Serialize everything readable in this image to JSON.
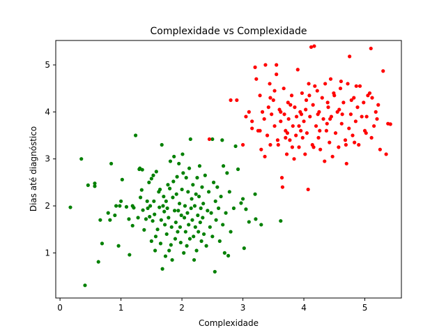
{
  "chart_data": {
    "type": "scatter",
    "title": "Complexidade vs Complexidade",
    "xlabel": "Complexidade",
    "ylabel": "Dias até diagnóstico",
    "xlim": [
      -0.07,
      5.6
    ],
    "ylim": [
      0.04,
      5.52
    ],
    "x_ticks": [
      "0",
      "1",
      "2",
      "3",
      "4",
      "5"
    ],
    "y_ticks": [
      "1",
      "2",
      "3",
      "4",
      "5"
    ],
    "grid": false,
    "legend": "none",
    "series": [
      {
        "color": "#008000",
        "points": [
          [
            0.17,
            1.97
          ],
          [
            0.35,
            3.0
          ],
          [
            0.41,
            0.31
          ],
          [
            0.46,
            2.44
          ],
          [
            0.57,
            2.48
          ],
          [
            0.57,
            2.42
          ],
          [
            0.63,
            0.81
          ],
          [
            0.66,
            1.7
          ],
          [
            0.69,
            1.2
          ],
          [
            0.79,
            1.85
          ],
          [
            0.82,
            1.7
          ],
          [
            0.84,
            2.9
          ],
          [
            0.9,
            1.8
          ],
          [
            0.92,
            2.0
          ],
          [
            0.96,
            1.15
          ],
          [
            0.98,
            2.0
          ],
          [
            1.0,
            2.1
          ],
          [
            1.02,
            2.56
          ],
          [
            1.09,
            1.98
          ],
          [
            1.13,
            1.72
          ],
          [
            1.14,
            0.96
          ],
          [
            1.19,
            2.0
          ],
          [
            1.19,
            1.58
          ],
          [
            1.21,
            1.96
          ],
          [
            1.24,
            3.5
          ],
          [
            1.28,
            1.75
          ],
          [
            1.3,
            2.78
          ],
          [
            1.31,
            2.8
          ],
          [
            1.32,
            2.18
          ],
          [
            1.34,
            2.34
          ],
          [
            1.35,
            2.77
          ],
          [
            1.36,
            1.91
          ],
          [
            1.38,
            1.49
          ],
          [
            1.41,
            1.72
          ],
          [
            1.43,
            2.1
          ],
          [
            1.44,
            1.95
          ],
          [
            1.46,
            2.5
          ],
          [
            1.47,
            1.77
          ],
          [
            1.48,
            2.0
          ],
          [
            1.5,
            1.25
          ],
          [
            1.5,
            2.58
          ],
          [
            1.52,
            1.68
          ],
          [
            1.53,
            2.65
          ],
          [
            1.54,
            2.1
          ],
          [
            1.55,
            1.82
          ],
          [
            1.56,
            1.05
          ],
          [
            1.57,
            1.35
          ],
          [
            1.58,
            2.73
          ],
          [
            1.6,
            1.5
          ],
          [
            1.62,
            2.3
          ],
          [
            1.63,
            1.97
          ],
          [
            1.64,
            2.35
          ],
          [
            1.65,
            1.2
          ],
          [
            1.66,
            1.7
          ],
          [
            1.67,
            3.3
          ],
          [
            1.68,
            0.66
          ],
          [
            1.69,
            2.0
          ],
          [
            1.7,
            2.2
          ],
          [
            1.71,
            1.88
          ],
          [
            1.72,
            1.6
          ],
          [
            1.73,
            0.93
          ],
          [
            1.74,
            2.1
          ],
          [
            1.75,
            1.4
          ],
          [
            1.76,
            1.95
          ],
          [
            1.77,
            2.45
          ],
          [
            1.78,
            1.75
          ],
          [
            1.79,
            1.05
          ],
          [
            1.8,
            2.37
          ],
          [
            1.81,
            2.95
          ],
          [
            1.82,
            1.17
          ],
          [
            1.83,
            1.55
          ],
          [
            1.84,
            0.85
          ],
          [
            1.85,
            2.18
          ],
          [
            1.86,
            2.52
          ],
          [
            1.87,
            3.05
          ],
          [
            1.88,
            1.9
          ],
          [
            1.89,
            1.3
          ],
          [
            1.9,
            1.65
          ],
          [
            1.91,
            2.25
          ],
          [
            1.92,
            2.62
          ],
          [
            1.93,
            1.45
          ],
          [
            1.94,
            1.9
          ],
          [
            1.95,
            2.9
          ],
          [
            1.96,
            2.05
          ],
          [
            1.97,
            1.55
          ],
          [
            1.98,
            1.22
          ],
          [
            1.99,
            1.8
          ],
          [
            2.0,
            2.35
          ],
          [
            2.01,
            3.1
          ],
          [
            2.02,
            2.7
          ],
          [
            2.03,
            1.0
          ],
          [
            2.04,
            1.75
          ],
          [
            2.05,
            2.0
          ],
          [
            2.06,
            1.45
          ],
          [
            2.07,
            2.6
          ],
          [
            2.08,
            1.15
          ],
          [
            2.09,
            1.85
          ],
          [
            2.1,
            2.3
          ],
          [
            2.11,
            1.6
          ],
          [
            2.12,
            2.8
          ],
          [
            2.13,
            1.3
          ],
          [
            2.14,
            3.42
          ],
          [
            2.15,
            1.95
          ],
          [
            2.16,
            2.15
          ],
          [
            2.17,
            1.7
          ],
          [
            2.18,
            2.45
          ],
          [
            2.19,
            1.35
          ],
          [
            2.2,
            0.85
          ],
          [
            2.21,
            2.0
          ],
          [
            2.22,
            1.55
          ],
          [
            2.23,
            2.25
          ],
          [
            2.24,
            1.05
          ],
          [
            2.25,
            2.6
          ],
          [
            2.26,
            1.8
          ],
          [
            2.27,
            1.45
          ],
          [
            2.28,
            2.2
          ],
          [
            2.29,
            2.85
          ],
          [
            2.3,
            1.65
          ],
          [
            2.31,
            1.95
          ],
          [
            2.32,
            1.25
          ],
          [
            2.33,
            2.4
          ],
          [
            2.34,
            1.75
          ],
          [
            2.35,
            2.05
          ],
          [
            2.36,
            1.4
          ],
          [
            2.38,
            2.65
          ],
          [
            2.4,
            1.15
          ],
          [
            2.42,
            1.9
          ],
          [
            2.44,
            2.3
          ],
          [
            2.46,
            1.55
          ],
          [
            2.48,
            1.85
          ],
          [
            2.5,
            3.42
          ],
          [
            2.5,
            1.35
          ],
          [
            2.52,
            2.5
          ],
          [
            2.54,
            0.6
          ],
          [
            2.55,
            2.1
          ],
          [
            2.56,
            1.7
          ],
          [
            2.58,
            2.4
          ],
          [
            2.6,
            1.95
          ],
          [
            2.62,
            1.25
          ],
          [
            2.64,
            2.2
          ],
          [
            2.66,
            3.4
          ],
          [
            2.67,
            1.6
          ],
          [
            2.68,
            2.85
          ],
          [
            2.7,
            1.0
          ],
          [
            2.72,
            1.85
          ],
          [
            2.74,
            2.7
          ],
          [
            2.76,
            0.94
          ],
          [
            2.78,
            2.3
          ],
          [
            2.8,
            1.45
          ],
          [
            2.85,
            1.95
          ],
          [
            2.88,
            3.27
          ],
          [
            2.92,
            2.78
          ],
          [
            2.97,
            2.06
          ],
          [
            3.0,
            2.15
          ],
          [
            3.02,
            1.1
          ],
          [
            3.05,
            1.93
          ],
          [
            3.1,
            1.66
          ],
          [
            3.2,
            2.25
          ],
          [
            3.21,
            1.72
          ],
          [
            3.3,
            1.6
          ],
          [
            3.62,
            1.68
          ]
        ]
      },
      {
        "color": "#ff0000",
        "points": [
          [
            2.45,
            3.42
          ],
          [
            2.8,
            4.25
          ],
          [
            2.9,
            4.25
          ],
          [
            3.0,
            3.3
          ],
          [
            3.05,
            3.9
          ],
          [
            3.1,
            4.0
          ],
          [
            3.15,
            3.65
          ],
          [
            3.2,
            4.95
          ],
          [
            3.22,
            4.7
          ],
          [
            3.25,
            3.6
          ],
          [
            3.28,
            4.35
          ],
          [
            3.3,
            3.2
          ],
          [
            3.32,
            4.0
          ],
          [
            3.35,
            3.85
          ],
          [
            3.37,
            5.0
          ],
          [
            3.4,
            3.5
          ],
          [
            3.42,
            4.1
          ],
          [
            3.44,
            4.6
          ],
          [
            3.45,
            3.3
          ],
          [
            3.47,
            3.95
          ],
          [
            3.5,
            4.25
          ],
          [
            3.52,
            3.7
          ],
          [
            3.55,
            5.0
          ],
          [
            3.57,
            3.4
          ],
          [
            3.6,
            4.05
          ],
          [
            3.62,
            3.8
          ],
          [
            3.64,
            2.6
          ],
          [
            3.65,
            2.4
          ],
          [
            3.67,
            4.5
          ],
          [
            3.7,
            3.6
          ],
          [
            3.72,
            3.1
          ],
          [
            3.74,
            4.2
          ],
          [
            3.75,
            3.85
          ],
          [
            3.77,
            3.4
          ],
          [
            3.8,
            4.35
          ],
          [
            3.82,
            3.7
          ],
          [
            3.84,
            3.0
          ],
          [
            3.85,
            4.1
          ],
          [
            3.87,
            3.5
          ],
          [
            3.9,
            4.9
          ],
          [
            3.92,
            3.25
          ],
          [
            3.94,
            4.0
          ],
          [
            3.95,
            3.6
          ],
          [
            3.97,
            4.4
          ],
          [
            4.0,
            3.8
          ],
          [
            4.02,
            3.1
          ],
          [
            4.04,
            4.25
          ],
          [
            4.05,
            3.55
          ],
          [
            4.07,
            2.35
          ],
          [
            4.08,
            4.6
          ],
          [
            4.1,
            3.9
          ],
          [
            4.12,
            5.38
          ],
          [
            4.14,
            3.3
          ],
          [
            4.15,
            4.15
          ],
          [
            4.17,
            5.4
          ],
          [
            4.2,
            3.7
          ],
          [
            4.22,
            4.45
          ],
          [
            4.24,
            3.45
          ],
          [
            4.25,
            4.0
          ],
          [
            4.27,
            3.2
          ],
          [
            4.3,
            4.3
          ],
          [
            4.32,
            3.85
          ],
          [
            4.34,
            2.95
          ],
          [
            4.35,
            4.6
          ],
          [
            4.37,
            3.6
          ],
          [
            4.4,
            4.1
          ],
          [
            4.42,
            3.35
          ],
          [
            4.44,
            4.7
          ],
          [
            4.45,
            3.9
          ],
          [
            4.47,
            3.05
          ],
          [
            4.5,
            4.35
          ],
          [
            4.52,
            3.55
          ],
          [
            4.55,
            4.0
          ],
          [
            4.57,
            3.25
          ],
          [
            4.6,
            4.5
          ],
          [
            4.62,
            3.75
          ],
          [
            4.65,
            4.2
          ],
          [
            4.68,
            3.4
          ],
          [
            4.7,
            2.9
          ],
          [
            4.72,
            4.6
          ],
          [
            4.74,
            3.65
          ],
          [
            4.75,
            5.18
          ],
          [
            4.77,
            3.95
          ],
          [
            4.8,
            3.5
          ],
          [
            4.82,
            4.3
          ],
          [
            4.85,
            3.8
          ],
          [
            4.88,
            4.1
          ],
          [
            4.9,
            3.3
          ],
          [
            4.92,
            4.55
          ],
          [
            4.95,
            3.9
          ],
          [
            4.98,
            4.2
          ],
          [
            5.0,
            3.6
          ],
          [
            5.02,
            3.55
          ],
          [
            5.05,
            4.35
          ],
          [
            5.08,
            4.4
          ],
          [
            5.1,
            5.35
          ],
          [
            5.12,
            4.3
          ],
          [
            5.15,
            3.7
          ],
          [
            5.18,
            4.0
          ],
          [
            5.2,
            3.85
          ],
          [
            5.22,
            4.15
          ],
          [
            5.25,
            3.2
          ],
          [
            5.3,
            4.87
          ],
          [
            5.35,
            3.1
          ],
          [
            5.38,
            3.75
          ],
          [
            5.42,
            3.74
          ],
          [
            3.15,
            3.8
          ],
          [
            3.28,
            3.6
          ],
          [
            3.52,
            4.45
          ],
          [
            3.68,
            3.95
          ],
          [
            3.78,
            4.15
          ],
          [
            3.92,
            3.7
          ],
          [
            4.18,
            4.55
          ],
          [
            4.38,
            3.75
          ],
          [
            4.58,
            4.05
          ],
          [
            4.78,
            4.25
          ],
          [
            3.45,
            4.3
          ],
          [
            3.58,
            3.3
          ],
          [
            3.73,
            3.55
          ],
          [
            3.88,
            3.9
          ],
          [
            4.03,
            4.05
          ],
          [
            4.23,
            3.95
          ],
          [
            4.43,
            3.85
          ],
          [
            4.63,
            3.95
          ],
          [
            4.83,
            3.35
          ],
          [
            3.55,
            4.8
          ],
          [
            3.62,
            4.0
          ],
          [
            3.81,
            3.25
          ],
          [
            3.98,
            3.45
          ],
          [
            4.09,
            4.35
          ],
          [
            4.26,
            3.6
          ],
          [
            4.49,
            4.4
          ],
          [
            4.69,
            3.3
          ],
          [
            5.03,
            3.9
          ],
          [
            3.36,
            3.05
          ],
          [
            3.7,
            3.45
          ],
          [
            3.96,
            3.95
          ],
          [
            4.16,
            3.25
          ],
          [
            4.39,
            4.2
          ],
          [
            4.61,
            4.65
          ],
          [
            4.86,
            4.55
          ],
          [
            5.11,
            3.45
          ]
        ]
      }
    ]
  }
}
